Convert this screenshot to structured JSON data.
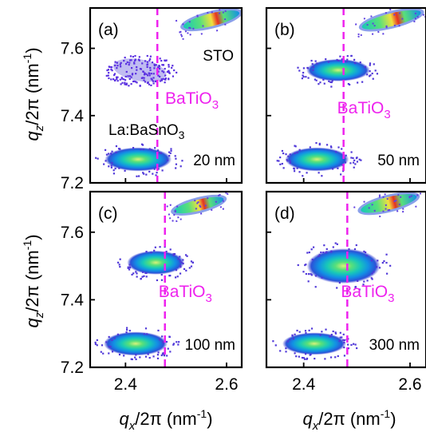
{
  "chart_data": [
    {
      "type": "heatmap",
      "panel_label": "(a)",
      "thickness_label": "20 nm",
      "annotations": {
        "substrate": "STO",
        "buffer": "La:BaSnO",
        "film": "BaTiO"
      },
      "xlim": [
        2.33,
        2.63
      ],
      "ylim": [
        7.2,
        7.72
      ],
      "x_ticks": [
        2.4,
        2.6
      ],
      "y_ticks": [
        7.2,
        7.4,
        7.6
      ],
      "dashed_line_qx": 2.463,
      "peaks": [
        {
          "name": "La:BaSnO3",
          "qx": 2.425,
          "qz": 7.27,
          "shape": "ellipse"
        },
        {
          "name": "BaTiO3",
          "qx": 2.428,
          "qz": 7.535,
          "shape": "ellipse"
        },
        {
          "name": "STO",
          "qx": 2.57,
          "qz": 7.685,
          "shape": "streak"
        }
      ]
    },
    {
      "type": "heatmap",
      "panel_label": "(b)",
      "thickness_label": "50 nm",
      "annotations": {
        "film": "BaTiO"
      },
      "xlim": [
        2.33,
        2.63
      ],
      "ylim": [
        7.2,
        7.72
      ],
      "x_ticks": [
        2.4,
        2.6
      ],
      "y_ticks": [
        7.2,
        7.4,
        7.6
      ],
      "dashed_line_qx": 2.475,
      "peaks": [
        {
          "name": "La:BaSnO3",
          "qx": 2.425,
          "qz": 7.27,
          "shape": "ellipse"
        },
        {
          "name": "BaTiO3",
          "qx": 2.465,
          "qz": 7.535,
          "shape": "ellipse"
        },
        {
          "name": "STO",
          "qx": 2.565,
          "qz": 7.685,
          "shape": "streak"
        }
      ]
    },
    {
      "type": "heatmap",
      "panel_label": "(c)",
      "thickness_label": "100 nm",
      "annotations": {
        "film": "BaTiO"
      },
      "xlim": [
        2.33,
        2.63
      ],
      "ylim": [
        7.2,
        7.72
      ],
      "x_ticks": [
        2.4,
        2.6
      ],
      "y_ticks": [
        7.2,
        7.4,
        7.6
      ],
      "dashed_line_qx": 2.478,
      "peaks": [
        {
          "name": "La:BaSnO3",
          "qx": 2.42,
          "qz": 7.27,
          "shape": "ellipse"
        },
        {
          "name": "BaTiO3",
          "qx": 2.46,
          "qz": 7.51,
          "shape": "ellipse"
        },
        {
          "name": "STO",
          "qx": 2.545,
          "qz": 7.68,
          "shape": "streak"
        }
      ]
    },
    {
      "type": "heatmap",
      "panel_label": "(d)",
      "thickness_label": "300 nm",
      "annotations": {
        "film": "BaTiO"
      },
      "xlim": [
        2.33,
        2.63
      ],
      "ylim": [
        7.2,
        7.72
      ],
      "x_ticks": [
        2.4,
        2.6
      ],
      "y_ticks": [
        7.2,
        7.4,
        7.6
      ],
      "dashed_line_qx": 2.482,
      "peaks": [
        {
          "name": "La:BaSnO3",
          "qx": 2.42,
          "qz": 7.27,
          "shape": "ellipse"
        },
        {
          "name": "BaTiO3",
          "qx": 2.475,
          "qz": 7.5,
          "shape": "ellipse"
        },
        {
          "name": "STO",
          "qx": 2.56,
          "qz": 7.685,
          "shape": "streak"
        }
      ]
    }
  ],
  "axes": {
    "ylabel_base": "q",
    "ylabel_sub": "z",
    "ylabel_mid": "/2π (nm",
    "ylabel_sup": "-1",
    "ylabel_end": ")",
    "xlabel_base": "q",
    "xlabel_sub": "x",
    "xlabel_mid": "/2π (nm",
    "xlabel_sup": "-1",
    "xlabel_end": ")",
    "subscript_3": "3"
  },
  "colors": {
    "dashed": "#ee22ee",
    "film_text": "#ee22ee",
    "axis": "#000000"
  }
}
